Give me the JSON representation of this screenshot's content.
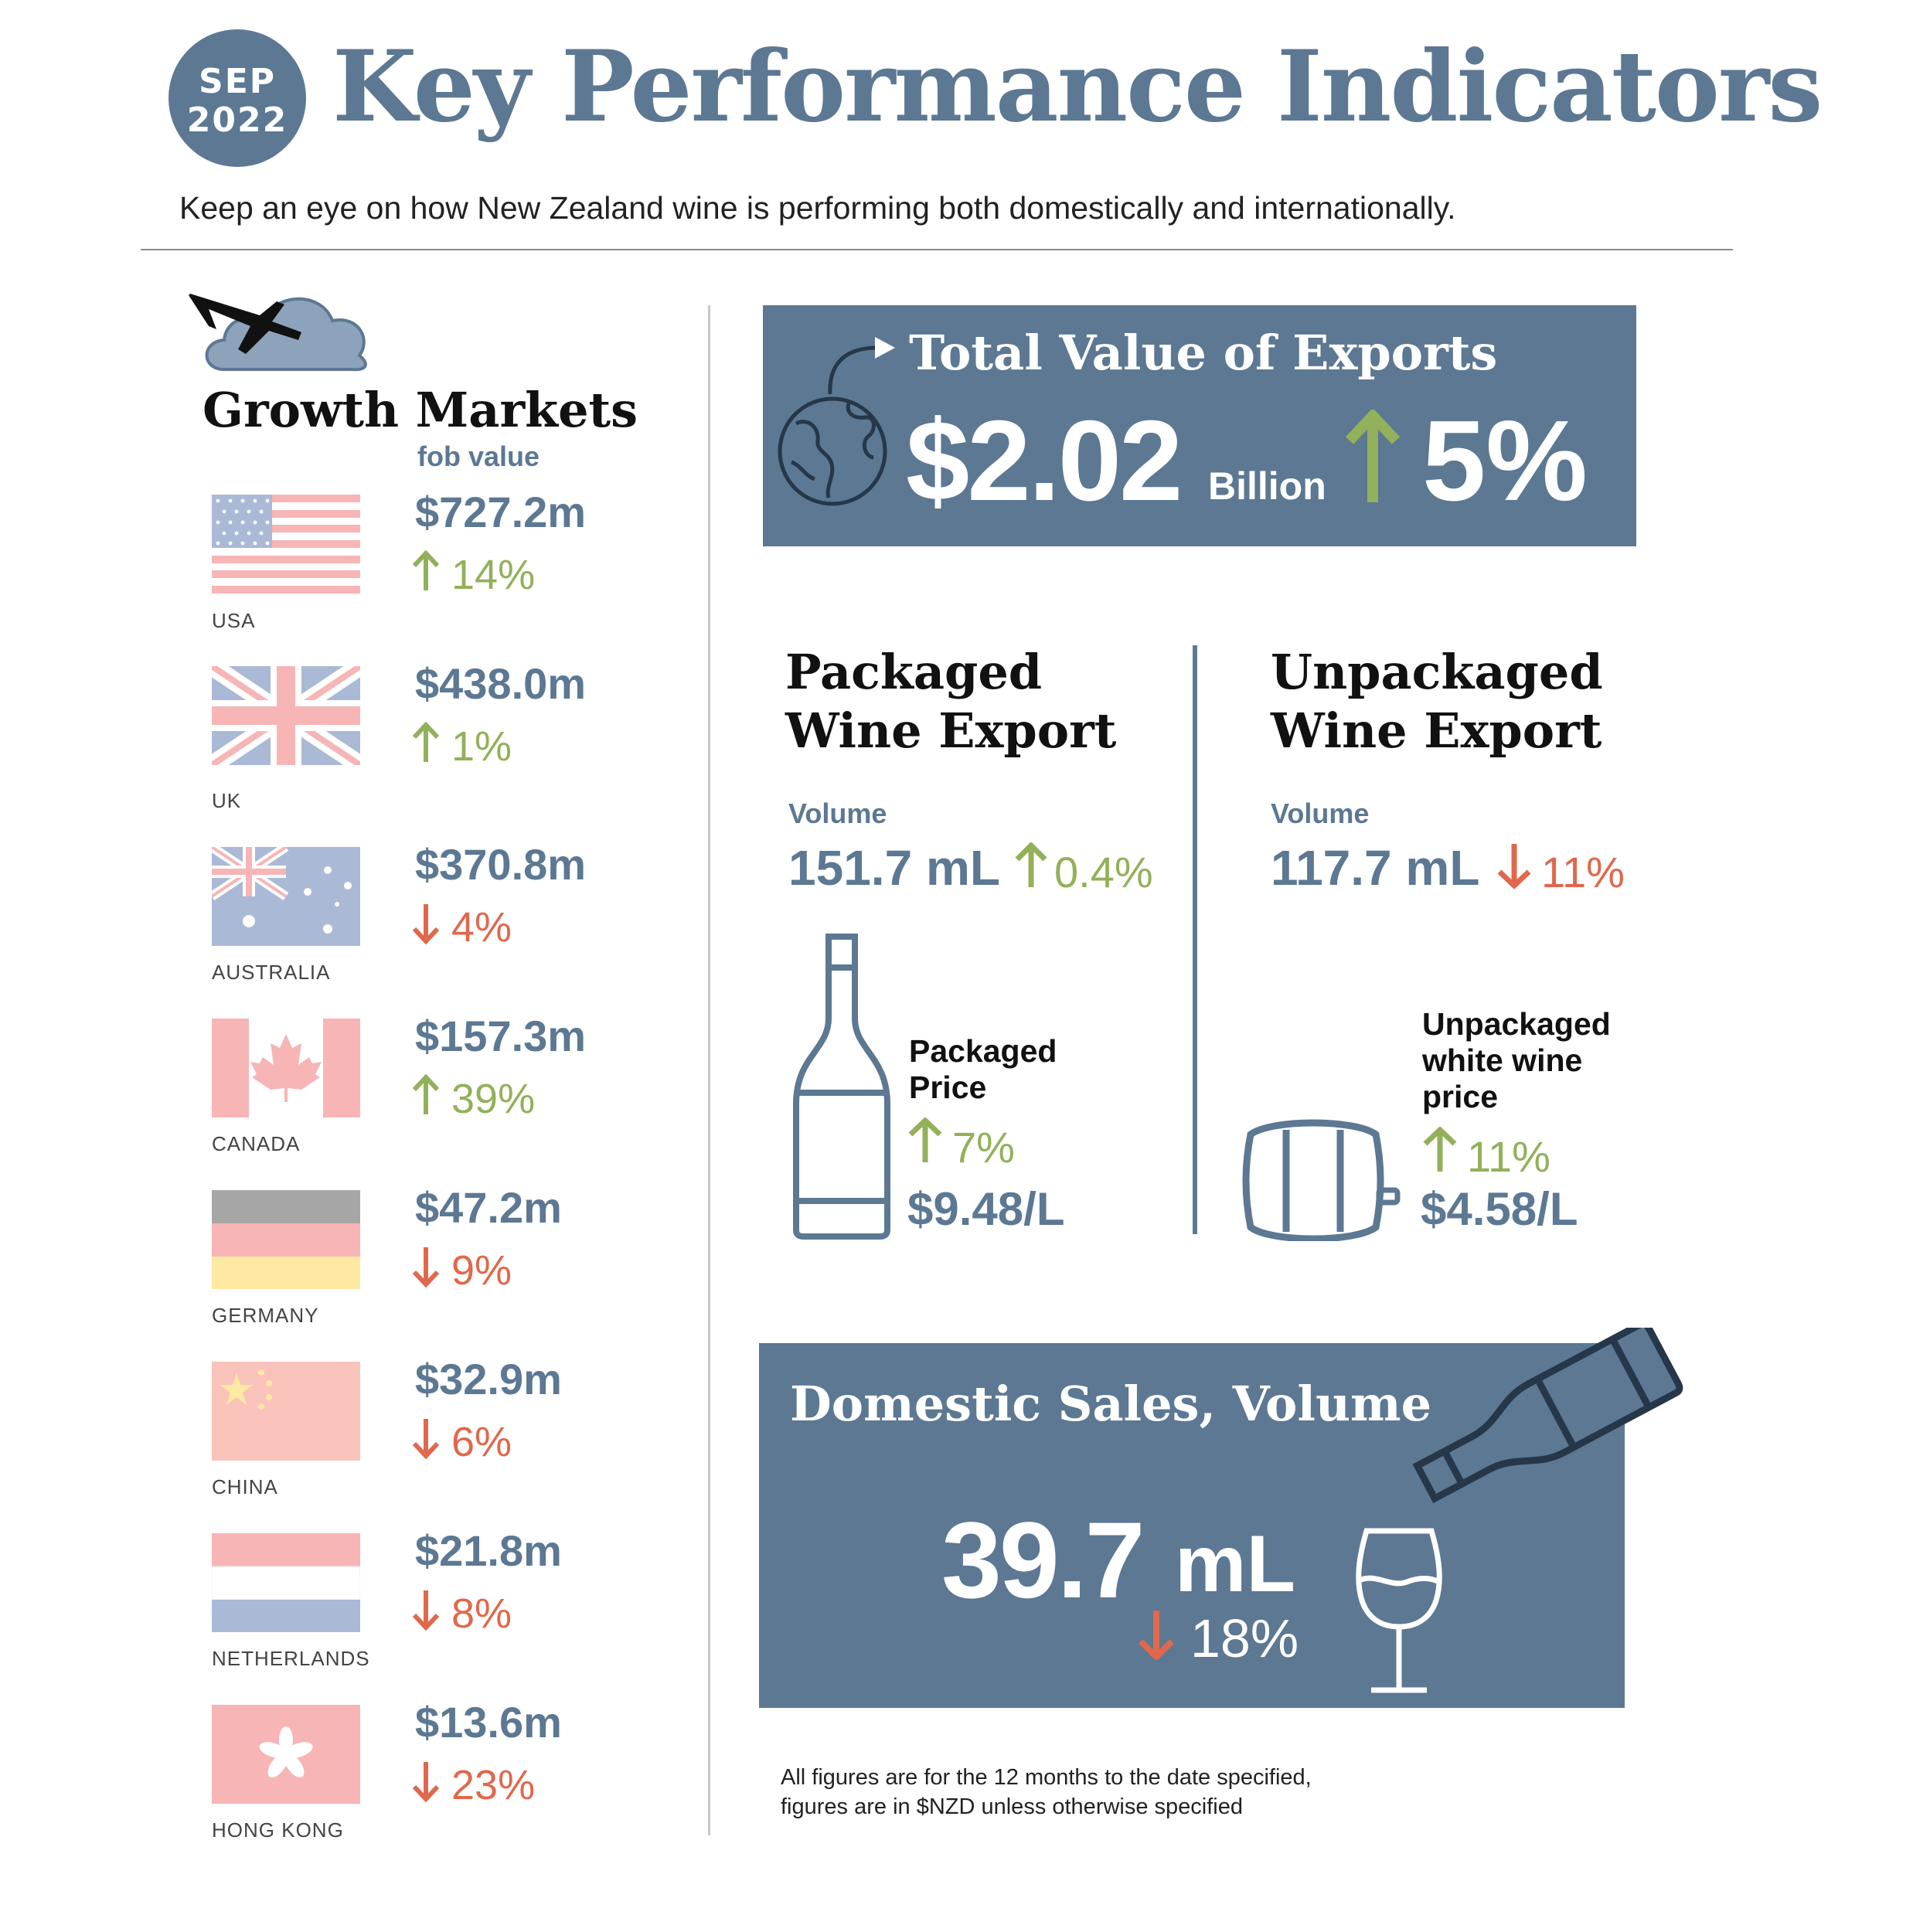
{
  "header": {
    "badge_month": "SEP",
    "badge_year": "2022",
    "title": "Key Performance Indicators",
    "subtitle": "Keep an eye on how New Zealand wine is performing both domestically and internationally."
  },
  "growth_markets": {
    "title": "Growth Markets",
    "subtitle": "fob value",
    "markets": [
      {
        "country": "USA",
        "value": "$727.2m",
        "change": "14%",
        "direction": "up"
      },
      {
        "country": "UK",
        "value": "$438.0m",
        "change": "1%",
        "direction": "up"
      },
      {
        "country": "AUSTRALIA",
        "value": "$370.8m",
        "change": "4%",
        "direction": "down"
      },
      {
        "country": "CANADA",
        "value": "$157.3m",
        "change": "39%",
        "direction": "up"
      },
      {
        "country": "GERMANY",
        "value": "$47.2m",
        "change": "9%",
        "direction": "down"
      },
      {
        "country": "CHINA",
        "value": "$32.9m",
        "change": "6%",
        "direction": "down"
      },
      {
        "country": "NETHERLANDS",
        "value": "$21.8m",
        "change": "8%",
        "direction": "down"
      },
      {
        "country": "HONG KONG",
        "value": "$13.6m",
        "change": "23%",
        "direction": "down"
      }
    ]
  },
  "total_exports": {
    "title": "Total Value of Exports",
    "value": "$2.02",
    "unit": "Billion",
    "change": "5%"
  },
  "packaged": {
    "title_line1": "Packaged",
    "title_line2": "Wine Export",
    "volume_label": "Volume",
    "volume": "151.7 mL",
    "volume_change": "0.4%",
    "price_label_line1": "Packaged",
    "price_label_line2": "Price",
    "price_change": "7%",
    "price": "$9.48/L"
  },
  "unpackaged": {
    "title_line1": "Unpackaged",
    "title_line2": "Wine Export",
    "volume_label": "Volume",
    "volume": "117.7 mL",
    "volume_change": "11%",
    "price_label_line1": "Unpackaged",
    "price_label_line2": "white wine",
    "price_label_line3": "price",
    "price_change": "11%",
    "price": "$4.58/L"
  },
  "domestic": {
    "title": "Domestic Sales, Volume",
    "value": "39.7",
    "unit": "mL",
    "change": "18%"
  },
  "footnote": {
    "line1": "All figures are for the 12 months to the date specified,",
    "line2": "figures are in $NZD unless otherwise specified"
  },
  "colors": {
    "slate": "#5c7893",
    "up_green": "#93b05a",
    "down_red": "#e0684c"
  },
  "icons": [
    "airplane-icon",
    "cloud-icon",
    "globe-icon",
    "curved-arrow-icon",
    "wine-bottle-icon",
    "barrel-icon",
    "pouring-bottle-icon",
    "wine-glass-icon",
    "arrow-up-icon",
    "arrow-down-icon"
  ]
}
